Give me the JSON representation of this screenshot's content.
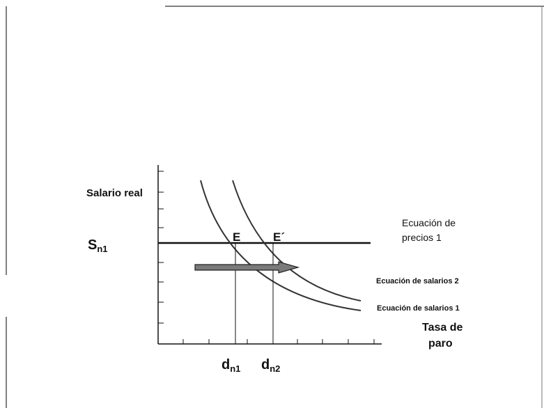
{
  "labels": {
    "y_axis": "Salario real",
    "x_axis_line1": "Tasa de",
    "x_axis_line2": "paro",
    "sn1_main": "S",
    "sn1_sub": "n1",
    "dn1_main": "d",
    "dn1_sub": "n1",
    "dn2_main": "d",
    "dn2_sub": "n2",
    "point_e": "E",
    "point_e_prime": "E´",
    "price_eq_line1": "Ecuación de",
    "price_eq_line2": "precios 1",
    "wage_eq_2": "Ecuación de salarios 2",
    "wage_eq_1": "Ecuación de salarios 1"
  },
  "colors": {
    "line": "#111111",
    "curve": "#333333",
    "arrow_fill": "#7a7a7a",
    "arrow_stroke": "#222222"
  }
}
